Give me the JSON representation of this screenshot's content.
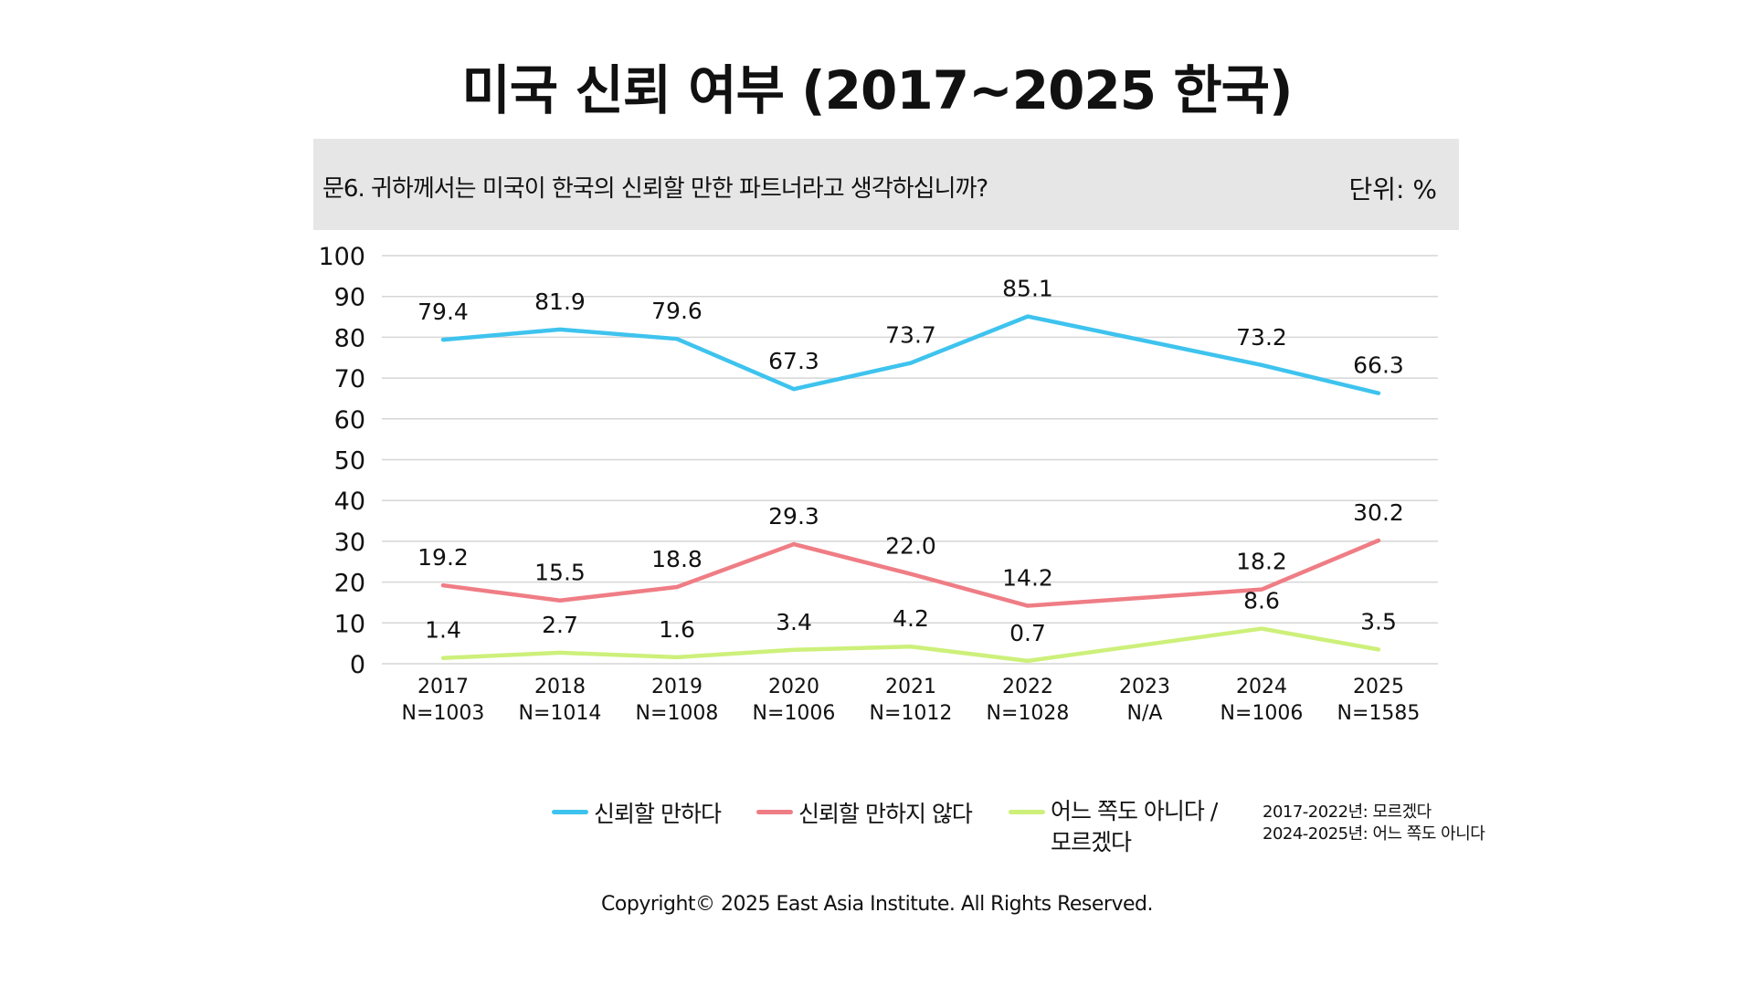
{
  "title": "미국 신뢰 여부 (2017~2025 한국)",
  "question": "문6. 귀하께서는 미국이 한국의 신뢰할 만한 파트너라고 생각하십니까?",
  "unit": "단위: %",
  "note": [
    "2017-2022년: 모르겠다",
    "2024-2025년: 어느 쪽도 아니다"
  ],
  "copyright": "Copyright© 2025 East Asia Institute. All Rights Reserved.",
  "chart_data": {
    "type": "line",
    "ylim": [
      0,
      100
    ],
    "yticks": [
      0,
      10,
      20,
      30,
      40,
      50,
      60,
      70,
      80,
      90,
      100
    ],
    "categories": [
      "2017",
      "2018",
      "2019",
      "2020",
      "2021",
      "2022",
      "2023",
      "2024",
      "2025"
    ],
    "sample_sizes": [
      "N=1003",
      "N=1014",
      "N=1008",
      "N=1006",
      "N=1012",
      "N=1028",
      "N/A",
      "N=1006",
      "N=1585"
    ],
    "grid": true,
    "legend_position": "bottom",
    "series": [
      {
        "name": "신뢰할 만하다",
        "color": "#3ec3ee",
        "values": [
          79.4,
          81.9,
          79.6,
          67.3,
          73.7,
          85.1,
          null,
          73.2,
          66.3
        ],
        "labels": [
          "79.4",
          "81.9",
          "79.6",
          "67.3",
          "73.7",
          "85.1",
          "",
          "73.2",
          "66.3"
        ]
      },
      {
        "name": "신뢰할 만하지 않다",
        "color": "#ef7d85",
        "values": [
          19.2,
          15.5,
          18.8,
          29.3,
          22.0,
          14.2,
          null,
          18.2,
          30.2
        ],
        "labels": [
          "19.2",
          "15.5",
          "18.8",
          "29.3",
          "22.0",
          "14.2",
          "",
          "18.2",
          "30.2"
        ]
      },
      {
        "name": "어느 쪽도 아니다 / 모르겠다",
        "legend_lines": [
          "어느 쪽도 아니다 /",
          "모르겠다"
        ],
        "color": "#cdf07a",
        "values": [
          1.4,
          2.7,
          1.6,
          3.4,
          4.2,
          0.7,
          null,
          8.6,
          3.5
        ],
        "labels": [
          "1.4",
          "2.7",
          "1.6",
          "3.4",
          "4.2",
          "0.7",
          "",
          "8.6",
          "3.5"
        ]
      }
    ]
  }
}
